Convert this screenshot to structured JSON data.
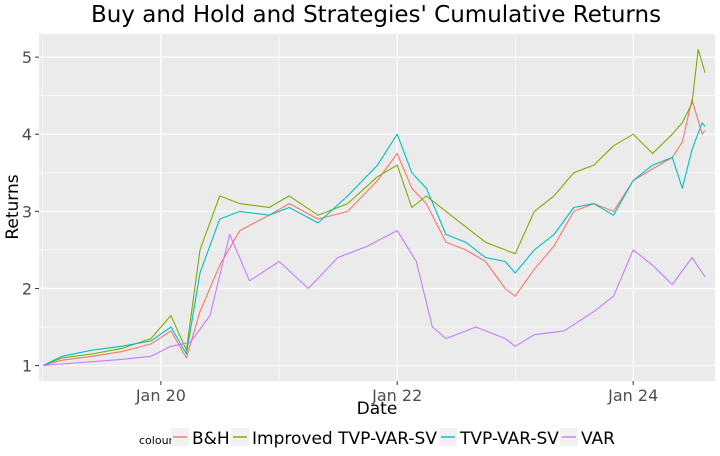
{
  "chart_data": {
    "type": "line",
    "title": "Buy and Hold and Strategies' Cumulative Returns",
    "xlabel": "Date",
    "ylabel": "Returns",
    "xlim": [
      "2018-12-20",
      "2024-09-10"
    ],
    "ylim": [
      0.8,
      5.3
    ],
    "x_ticks": [
      {
        "value": "2020-01-01",
        "label": "Jan 20"
      },
      {
        "value": "2022-01-01",
        "label": "Jan 22"
      },
      {
        "value": "2024-01-01",
        "label": "Jan 24"
      }
    ],
    "y_ticks": [
      {
        "value": 1,
        "label": "1"
      },
      {
        "value": 2,
        "label": "2"
      },
      {
        "value": 3,
        "label": "3"
      },
      {
        "value": 4,
        "label": "4"
      },
      {
        "value": 5,
        "label": "5"
      }
    ],
    "grid": true,
    "legend": {
      "title": "colour",
      "position": "bottom"
    },
    "series": [
      {
        "name": "B&H",
        "color": "#F8766D",
        "x": [
          "2019-01-01",
          "2019-03-01",
          "2019-06-01",
          "2019-09-01",
          "2019-12-01",
          "2020-02-01",
          "2020-03-20",
          "2020-05-01",
          "2020-07-01",
          "2020-09-01",
          "2020-12-01",
          "2021-02-01",
          "2021-05-01",
          "2021-08-01",
          "2021-11-01",
          "2022-01-01",
          "2022-02-15",
          "2022-04-01",
          "2022-06-01",
          "2022-08-01",
          "2022-10-01",
          "2022-12-01",
          "2023-01-01",
          "2023-03-01",
          "2023-05-01",
          "2023-07-01",
          "2023-09-01",
          "2023-11-01",
          "2024-01-01",
          "2024-03-01",
          "2024-05-01",
          "2024-06-01",
          "2024-07-01",
          "2024-08-01",
          "2024-08-10"
        ],
        "values": [
          1.0,
          1.07,
          1.12,
          1.18,
          1.28,
          1.45,
          1.1,
          1.7,
          2.3,
          2.75,
          2.95,
          3.1,
          2.9,
          3.0,
          3.4,
          3.75,
          3.3,
          3.1,
          2.6,
          2.5,
          2.35,
          2.0,
          1.9,
          2.25,
          2.55,
          3.0,
          3.1,
          3.0,
          3.4,
          3.55,
          3.7,
          3.9,
          4.45,
          4.0,
          4.05
        ]
      },
      {
        "name": "Improved TVP-VAR-SV",
        "color": "#7CAE00",
        "x": [
          "2019-01-01",
          "2019-03-01",
          "2019-06-01",
          "2019-09-01",
          "2019-12-01",
          "2020-02-01",
          "2020-03-20",
          "2020-05-01",
          "2020-07-01",
          "2020-09-01",
          "2020-12-01",
          "2021-02-01",
          "2021-05-01",
          "2021-08-01",
          "2021-11-01",
          "2022-01-01",
          "2022-02-15",
          "2022-04-01",
          "2022-06-01",
          "2022-08-01",
          "2022-10-01",
          "2022-12-01",
          "2023-01-01",
          "2023-03-01",
          "2023-05-01",
          "2023-07-01",
          "2023-09-01",
          "2023-11-01",
          "2024-01-01",
          "2024-03-01",
          "2024-05-01",
          "2024-06-01",
          "2024-07-01",
          "2024-07-20",
          "2024-08-10"
        ],
        "values": [
          1.0,
          1.1,
          1.15,
          1.22,
          1.35,
          1.65,
          1.2,
          2.5,
          3.2,
          3.1,
          3.05,
          3.2,
          2.95,
          3.1,
          3.45,
          3.6,
          3.05,
          3.2,
          3.0,
          2.8,
          2.6,
          2.5,
          2.45,
          3.0,
          3.2,
          3.5,
          3.6,
          3.85,
          4.0,
          3.75,
          4.0,
          4.15,
          4.4,
          5.1,
          4.8
        ]
      },
      {
        "name": "TVP-VAR-SV",
        "color": "#00BFC4",
        "x": [
          "2019-01-01",
          "2019-03-01",
          "2019-06-01",
          "2019-09-01",
          "2019-12-01",
          "2020-02-01",
          "2020-03-20",
          "2020-05-01",
          "2020-07-01",
          "2020-09-01",
          "2020-12-01",
          "2021-02-01",
          "2021-05-01",
          "2021-08-01",
          "2021-11-01",
          "2022-01-01",
          "2022-02-15",
          "2022-04-01",
          "2022-06-01",
          "2022-08-01",
          "2022-10-01",
          "2022-12-01",
          "2023-01-01",
          "2023-03-01",
          "2023-05-01",
          "2023-07-01",
          "2023-09-01",
          "2023-11-01",
          "2024-01-01",
          "2024-03-01",
          "2024-05-01",
          "2024-06-01",
          "2024-07-01",
          "2024-08-01",
          "2024-08-10"
        ],
        "values": [
          1.0,
          1.12,
          1.2,
          1.25,
          1.32,
          1.5,
          1.15,
          2.2,
          2.9,
          3.0,
          2.95,
          3.05,
          2.85,
          3.2,
          3.6,
          4.0,
          3.5,
          3.3,
          2.7,
          2.6,
          2.4,
          2.35,
          2.2,
          2.5,
          2.7,
          3.05,
          3.1,
          2.95,
          3.4,
          3.6,
          3.7,
          3.3,
          3.8,
          4.15,
          4.1
        ]
      },
      {
        "name": "VAR",
        "color": "#C77CFF",
        "x": [
          "2019-01-01",
          "2019-03-01",
          "2019-06-01",
          "2019-09-01",
          "2019-12-01",
          "2020-02-01",
          "2020-04-01",
          "2020-06-01",
          "2020-08-01",
          "2020-10-01",
          "2021-01-01",
          "2021-04-01",
          "2021-07-01",
          "2021-10-01",
          "2022-01-01",
          "2022-03-01",
          "2022-04-20",
          "2022-06-01",
          "2022-09-01",
          "2022-12-01",
          "2023-01-01",
          "2023-03-01",
          "2023-06-01",
          "2023-09-01",
          "2023-11-01",
          "2024-01-01",
          "2024-03-01",
          "2024-05-01",
          "2024-07-01",
          "2024-08-10"
        ],
        "values": [
          1.0,
          1.02,
          1.05,
          1.08,
          1.12,
          1.25,
          1.3,
          1.65,
          2.7,
          2.1,
          2.35,
          2.0,
          2.4,
          2.55,
          2.75,
          2.35,
          1.5,
          1.35,
          1.5,
          1.35,
          1.25,
          1.4,
          1.45,
          1.7,
          1.9,
          2.5,
          2.3,
          2.05,
          2.4,
          2.15
        ]
      }
    ]
  }
}
